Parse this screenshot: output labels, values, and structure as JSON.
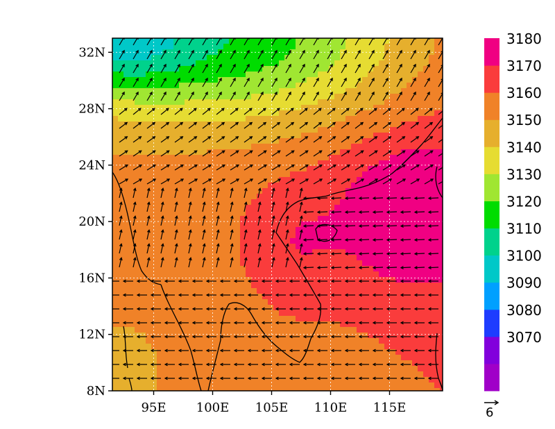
{
  "map": {
    "lat_ticks": [
      {
        "value": 32,
        "label": "32N"
      },
      {
        "value": 28,
        "label": "28N"
      },
      {
        "value": 24,
        "label": "24N"
      },
      {
        "value": 20,
        "label": "20N"
      },
      {
        "value": 16,
        "label": "16N"
      },
      {
        "value": 12,
        "label": "12N"
      },
      {
        "value": 8,
        "label": "8N"
      }
    ],
    "lon_ticks": [
      {
        "value": 95,
        "label": "95E"
      },
      {
        "value": 100,
        "label": "100E"
      },
      {
        "value": 105,
        "label": "105E"
      },
      {
        "value": 110,
        "label": "110E"
      },
      {
        "value": 115,
        "label": "115E"
      }
    ],
    "lon_range": [
      91.5,
      119.5
    ],
    "lat_range": [
      8,
      33
    ],
    "colorbar": [
      {
        "label": "",
        "color": "#a000c8"
      },
      {
        "label": "3070",
        "color": "#8200dc"
      },
      {
        "label": "3080",
        "color": "#1e3cff"
      },
      {
        "label": "3090",
        "color": "#00a0ff"
      },
      {
        "label": "3100",
        "color": "#00c8c8"
      },
      {
        "label": "3110",
        "color": "#00d28c"
      },
      {
        "label": "3120",
        "color": "#00dc00"
      },
      {
        "label": "3130",
        "color": "#a0e632"
      },
      {
        "label": "3140",
        "color": "#e6dc32"
      },
      {
        "label": "3150",
        "color": "#e6af2d"
      },
      {
        "label": "3160",
        "color": "#f08228"
      },
      {
        "label": "3170",
        "color": "#fa3c3c"
      },
      {
        "label": "3180",
        "color": "#f00082"
      }
    ],
    "reference_vector": {
      "label": "6"
    }
  }
}
